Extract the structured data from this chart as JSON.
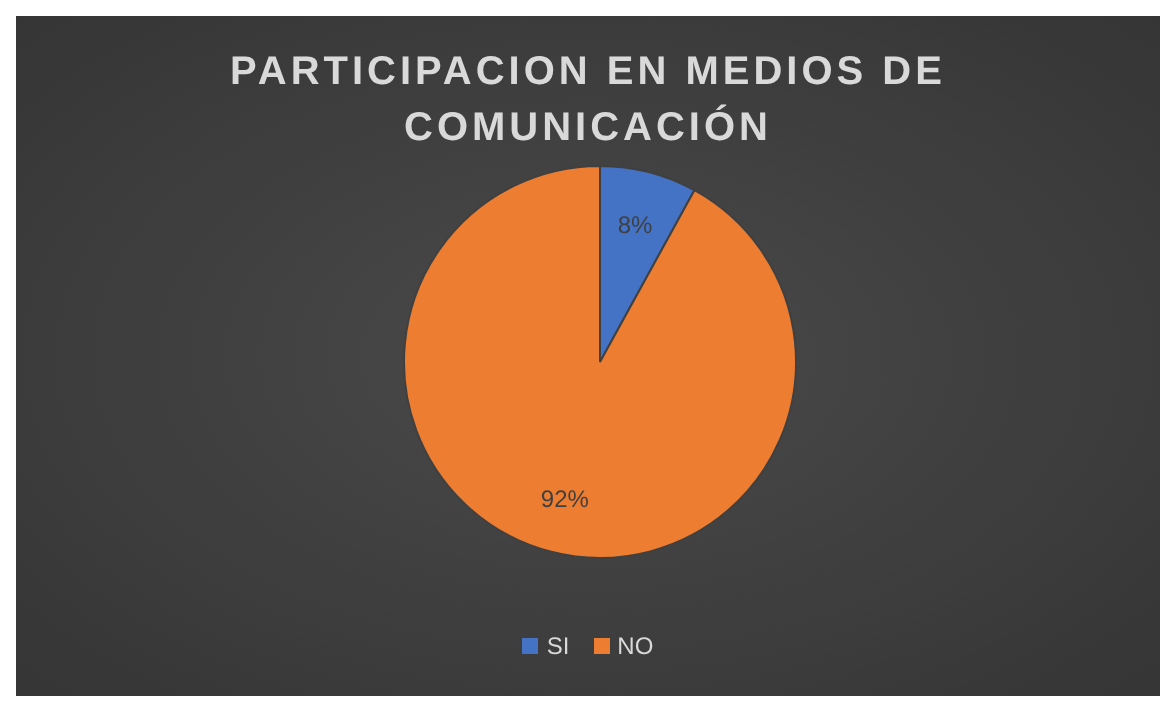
{
  "chart_data": {
    "type": "pie",
    "title": "PARTICIPACION EN MEDIOS DE COMUNICACIÓN",
    "categories": [
      "SI",
      "NO"
    ],
    "values": [
      8,
      92
    ],
    "colors": [
      "#4472c4",
      "#ed7d31"
    ],
    "value_labels": [
      "8%",
      "92%"
    ],
    "legend": "bottom"
  }
}
